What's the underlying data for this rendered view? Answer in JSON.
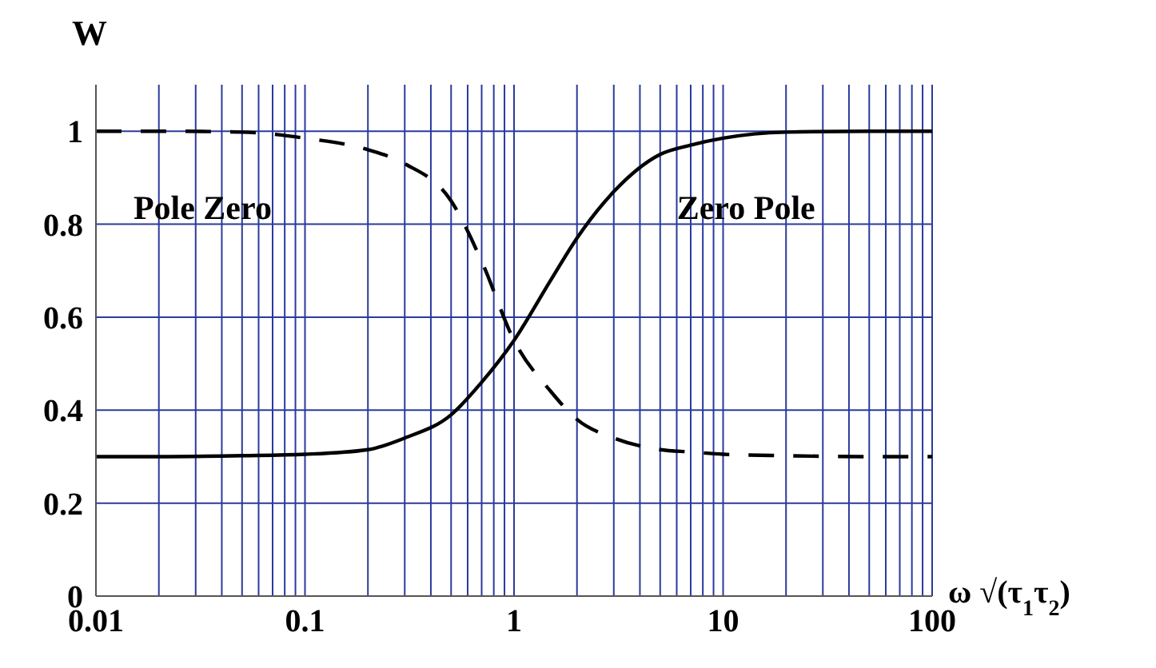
{
  "chart_data": {
    "type": "line",
    "xlabel": "ω √(τ$_{1}$τ$_{2}$)",
    "ylabel": "W",
    "log": "x",
    "grid": true,
    "marker": "none",
    "x": [
      0.01,
      0.02,
      0.05,
      0.1,
      0.2,
      0.3,
      0.5,
      0.7,
      1,
      1.5,
      2,
      3,
      5,
      7,
      10,
      20,
      50,
      100
    ],
    "series": [
      {
        "color": "#000000",
        "line_style": "solid",
        "values": [
          0.3,
          0.3,
          0.302,
          0.305,
          0.315,
          0.34,
          0.39,
          0.46,
          0.55,
          0.68,
          0.77,
          0.87,
          0.95,
          0.97,
          0.985,
          0.998,
          1,
          1
        ]
      },
      {
        "color": "#000000",
        "line_style": "dashed",
        "values": [
          1,
          1,
          0.998,
          0.985,
          0.96,
          0.93,
          0.85,
          0.72,
          0.55,
          0.44,
          0.38,
          0.34,
          0.315,
          0.31,
          0.305,
          0.302,
          0.3,
          0.3
        ]
      }
    ],
    "xlim": [
      0.01,
      100
    ],
    "ylim": [
      0,
      1.1
    ],
    "xticks": [
      0.01,
      {
        "value": 0.02,
        "label": null
      },
      {
        "value": 0.03,
        "label": null
      },
      {
        "value": 0.04,
        "label": null
      },
      {
        "value": 0.05,
        "label": null
      },
      {
        "value": 0.06,
        "label": null
      },
      {
        "value": 0.07,
        "label": null
      },
      {
        "value": 0.08,
        "label": null
      },
      {
        "value": 0.09,
        "label": null
      },
      0.1,
      {
        "value": 0.2,
        "label": null
      },
      {
        "value": 0.3,
        "label": null
      },
      {
        "value": 0.4,
        "label": null
      },
      {
        "value": 0.5,
        "label": null
      },
      {
        "value": 0.6,
        "label": null
      },
      {
        "value": 0.7,
        "label": null
      },
      {
        "value": 0.8,
        "label": null
      },
      {
        "value": 0.9,
        "label": null
      },
      1,
      {
        "value": 2,
        "label": null
      },
      {
        "value": 3,
        "label": null
      },
      {
        "value": 4,
        "label": null
      },
      {
        "value": 5,
        "label": null
      },
      {
        "value": 6,
        "label": null
      },
      {
        "value": 7,
        "label": null
      },
      {
        "value": 8,
        "label": null
      },
      {
        "value": 9,
        "label": null
      },
      10,
      {
        "value": 20,
        "label": null
      },
      {
        "value": 30,
        "label": null
      },
      {
        "value": 40,
        "label": null
      },
      {
        "value": 50,
        "label": null
      },
      {
        "value": 60,
        "label": null
      },
      {
        "value": 70,
        "label": null
      },
      {
        "value": 80,
        "label": null
      },
      {
        "value": 90,
        "label": null
      },
      100
    ],
    "yticks": [
      0,
      0.2,
      0.4,
      0.6,
      0.8,
      1
    ],
    "annotations": [
      "Pole Zero",
      "Zero Pole"
    ]
  }
}
